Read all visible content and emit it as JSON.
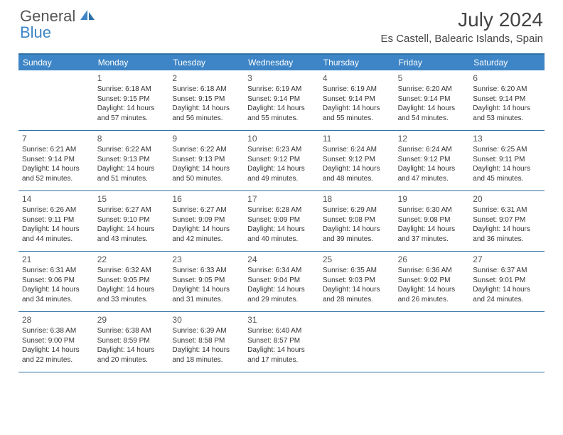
{
  "logo": {
    "text1": "General",
    "text2": "Blue"
  },
  "title": "July 2024",
  "location": "Es Castell, Balearic Islands, Spain",
  "colors": {
    "headerBg": "#3d85c6",
    "border": "#2d6fa3",
    "text": "#333333"
  },
  "dayHeaders": [
    "Sunday",
    "Monday",
    "Tuesday",
    "Wednesday",
    "Thursday",
    "Friday",
    "Saturday"
  ],
  "weeks": [
    [
      {
        "n": "",
        "l1": "",
        "l2": "",
        "l3": "",
        "l4": ""
      },
      {
        "n": "1",
        "l1": "Sunrise: 6:18 AM",
        "l2": "Sunset: 9:15 PM",
        "l3": "Daylight: 14 hours",
        "l4": "and 57 minutes."
      },
      {
        "n": "2",
        "l1": "Sunrise: 6:18 AM",
        "l2": "Sunset: 9:15 PM",
        "l3": "Daylight: 14 hours",
        "l4": "and 56 minutes."
      },
      {
        "n": "3",
        "l1": "Sunrise: 6:19 AM",
        "l2": "Sunset: 9:14 PM",
        "l3": "Daylight: 14 hours",
        "l4": "and 55 minutes."
      },
      {
        "n": "4",
        "l1": "Sunrise: 6:19 AM",
        "l2": "Sunset: 9:14 PM",
        "l3": "Daylight: 14 hours",
        "l4": "and 55 minutes."
      },
      {
        "n": "5",
        "l1": "Sunrise: 6:20 AM",
        "l2": "Sunset: 9:14 PM",
        "l3": "Daylight: 14 hours",
        "l4": "and 54 minutes."
      },
      {
        "n": "6",
        "l1": "Sunrise: 6:20 AM",
        "l2": "Sunset: 9:14 PM",
        "l3": "Daylight: 14 hours",
        "l4": "and 53 minutes."
      }
    ],
    [
      {
        "n": "7",
        "l1": "Sunrise: 6:21 AM",
        "l2": "Sunset: 9:14 PM",
        "l3": "Daylight: 14 hours",
        "l4": "and 52 minutes."
      },
      {
        "n": "8",
        "l1": "Sunrise: 6:22 AM",
        "l2": "Sunset: 9:13 PM",
        "l3": "Daylight: 14 hours",
        "l4": "and 51 minutes."
      },
      {
        "n": "9",
        "l1": "Sunrise: 6:22 AM",
        "l2": "Sunset: 9:13 PM",
        "l3": "Daylight: 14 hours",
        "l4": "and 50 minutes."
      },
      {
        "n": "10",
        "l1": "Sunrise: 6:23 AM",
        "l2": "Sunset: 9:12 PM",
        "l3": "Daylight: 14 hours",
        "l4": "and 49 minutes."
      },
      {
        "n": "11",
        "l1": "Sunrise: 6:24 AM",
        "l2": "Sunset: 9:12 PM",
        "l3": "Daylight: 14 hours",
        "l4": "and 48 minutes."
      },
      {
        "n": "12",
        "l1": "Sunrise: 6:24 AM",
        "l2": "Sunset: 9:12 PM",
        "l3": "Daylight: 14 hours",
        "l4": "and 47 minutes."
      },
      {
        "n": "13",
        "l1": "Sunrise: 6:25 AM",
        "l2": "Sunset: 9:11 PM",
        "l3": "Daylight: 14 hours",
        "l4": "and 45 minutes."
      }
    ],
    [
      {
        "n": "14",
        "l1": "Sunrise: 6:26 AM",
        "l2": "Sunset: 9:11 PM",
        "l3": "Daylight: 14 hours",
        "l4": "and 44 minutes."
      },
      {
        "n": "15",
        "l1": "Sunrise: 6:27 AM",
        "l2": "Sunset: 9:10 PM",
        "l3": "Daylight: 14 hours",
        "l4": "and 43 minutes."
      },
      {
        "n": "16",
        "l1": "Sunrise: 6:27 AM",
        "l2": "Sunset: 9:09 PM",
        "l3": "Daylight: 14 hours",
        "l4": "and 42 minutes."
      },
      {
        "n": "17",
        "l1": "Sunrise: 6:28 AM",
        "l2": "Sunset: 9:09 PM",
        "l3": "Daylight: 14 hours",
        "l4": "and 40 minutes."
      },
      {
        "n": "18",
        "l1": "Sunrise: 6:29 AM",
        "l2": "Sunset: 9:08 PM",
        "l3": "Daylight: 14 hours",
        "l4": "and 39 minutes."
      },
      {
        "n": "19",
        "l1": "Sunrise: 6:30 AM",
        "l2": "Sunset: 9:08 PM",
        "l3": "Daylight: 14 hours",
        "l4": "and 37 minutes."
      },
      {
        "n": "20",
        "l1": "Sunrise: 6:31 AM",
        "l2": "Sunset: 9:07 PM",
        "l3": "Daylight: 14 hours",
        "l4": "and 36 minutes."
      }
    ],
    [
      {
        "n": "21",
        "l1": "Sunrise: 6:31 AM",
        "l2": "Sunset: 9:06 PM",
        "l3": "Daylight: 14 hours",
        "l4": "and 34 minutes."
      },
      {
        "n": "22",
        "l1": "Sunrise: 6:32 AM",
        "l2": "Sunset: 9:05 PM",
        "l3": "Daylight: 14 hours",
        "l4": "and 33 minutes."
      },
      {
        "n": "23",
        "l1": "Sunrise: 6:33 AM",
        "l2": "Sunset: 9:05 PM",
        "l3": "Daylight: 14 hours",
        "l4": "and 31 minutes."
      },
      {
        "n": "24",
        "l1": "Sunrise: 6:34 AM",
        "l2": "Sunset: 9:04 PM",
        "l3": "Daylight: 14 hours",
        "l4": "and 29 minutes."
      },
      {
        "n": "25",
        "l1": "Sunrise: 6:35 AM",
        "l2": "Sunset: 9:03 PM",
        "l3": "Daylight: 14 hours",
        "l4": "and 28 minutes."
      },
      {
        "n": "26",
        "l1": "Sunrise: 6:36 AM",
        "l2": "Sunset: 9:02 PM",
        "l3": "Daylight: 14 hours",
        "l4": "and 26 minutes."
      },
      {
        "n": "27",
        "l1": "Sunrise: 6:37 AM",
        "l2": "Sunset: 9:01 PM",
        "l3": "Daylight: 14 hours",
        "l4": "and 24 minutes."
      }
    ],
    [
      {
        "n": "28",
        "l1": "Sunrise: 6:38 AM",
        "l2": "Sunset: 9:00 PM",
        "l3": "Daylight: 14 hours",
        "l4": "and 22 minutes."
      },
      {
        "n": "29",
        "l1": "Sunrise: 6:38 AM",
        "l2": "Sunset: 8:59 PM",
        "l3": "Daylight: 14 hours",
        "l4": "and 20 minutes."
      },
      {
        "n": "30",
        "l1": "Sunrise: 6:39 AM",
        "l2": "Sunset: 8:58 PM",
        "l3": "Daylight: 14 hours",
        "l4": "and 18 minutes."
      },
      {
        "n": "31",
        "l1": "Sunrise: 6:40 AM",
        "l2": "Sunset: 8:57 PM",
        "l3": "Daylight: 14 hours",
        "l4": "and 17 minutes."
      },
      {
        "n": "",
        "l1": "",
        "l2": "",
        "l3": "",
        "l4": ""
      },
      {
        "n": "",
        "l1": "",
        "l2": "",
        "l3": "",
        "l4": ""
      },
      {
        "n": "",
        "l1": "",
        "l2": "",
        "l3": "",
        "l4": ""
      }
    ]
  ]
}
